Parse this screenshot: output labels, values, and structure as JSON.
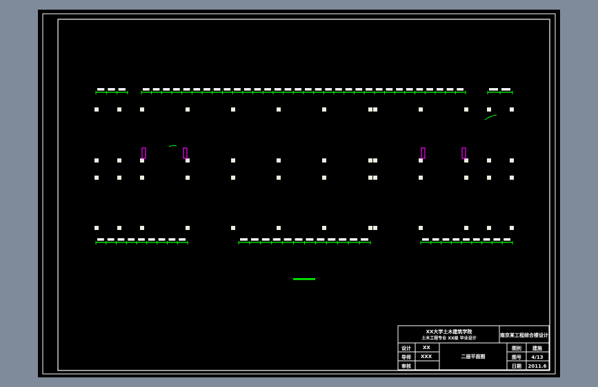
{
  "drawing": {
    "background": "#000000",
    "line_color": "#ffffff",
    "dimension_color": "#00ff00",
    "stair_marker_color": "#ff00ff"
  },
  "title_block": {
    "school": "XX大学土木建筑学院",
    "class_line": "土木工程专业 XX级  毕业设计",
    "project": "南京某工程综合楼设计",
    "drawing_title": "二层平面图",
    "rows": [
      {
        "label": "设计",
        "value": "XX"
      },
      {
        "label": "导师",
        "value": "XXX"
      },
      {
        "label": "审核",
        "value": ""
      }
    ],
    "right_rows": [
      {
        "label": "图别",
        "value": "建施"
      },
      {
        "label": "图号",
        "value": "4/13"
      },
      {
        "label": "日期",
        "value": "2011.6"
      }
    ]
  }
}
